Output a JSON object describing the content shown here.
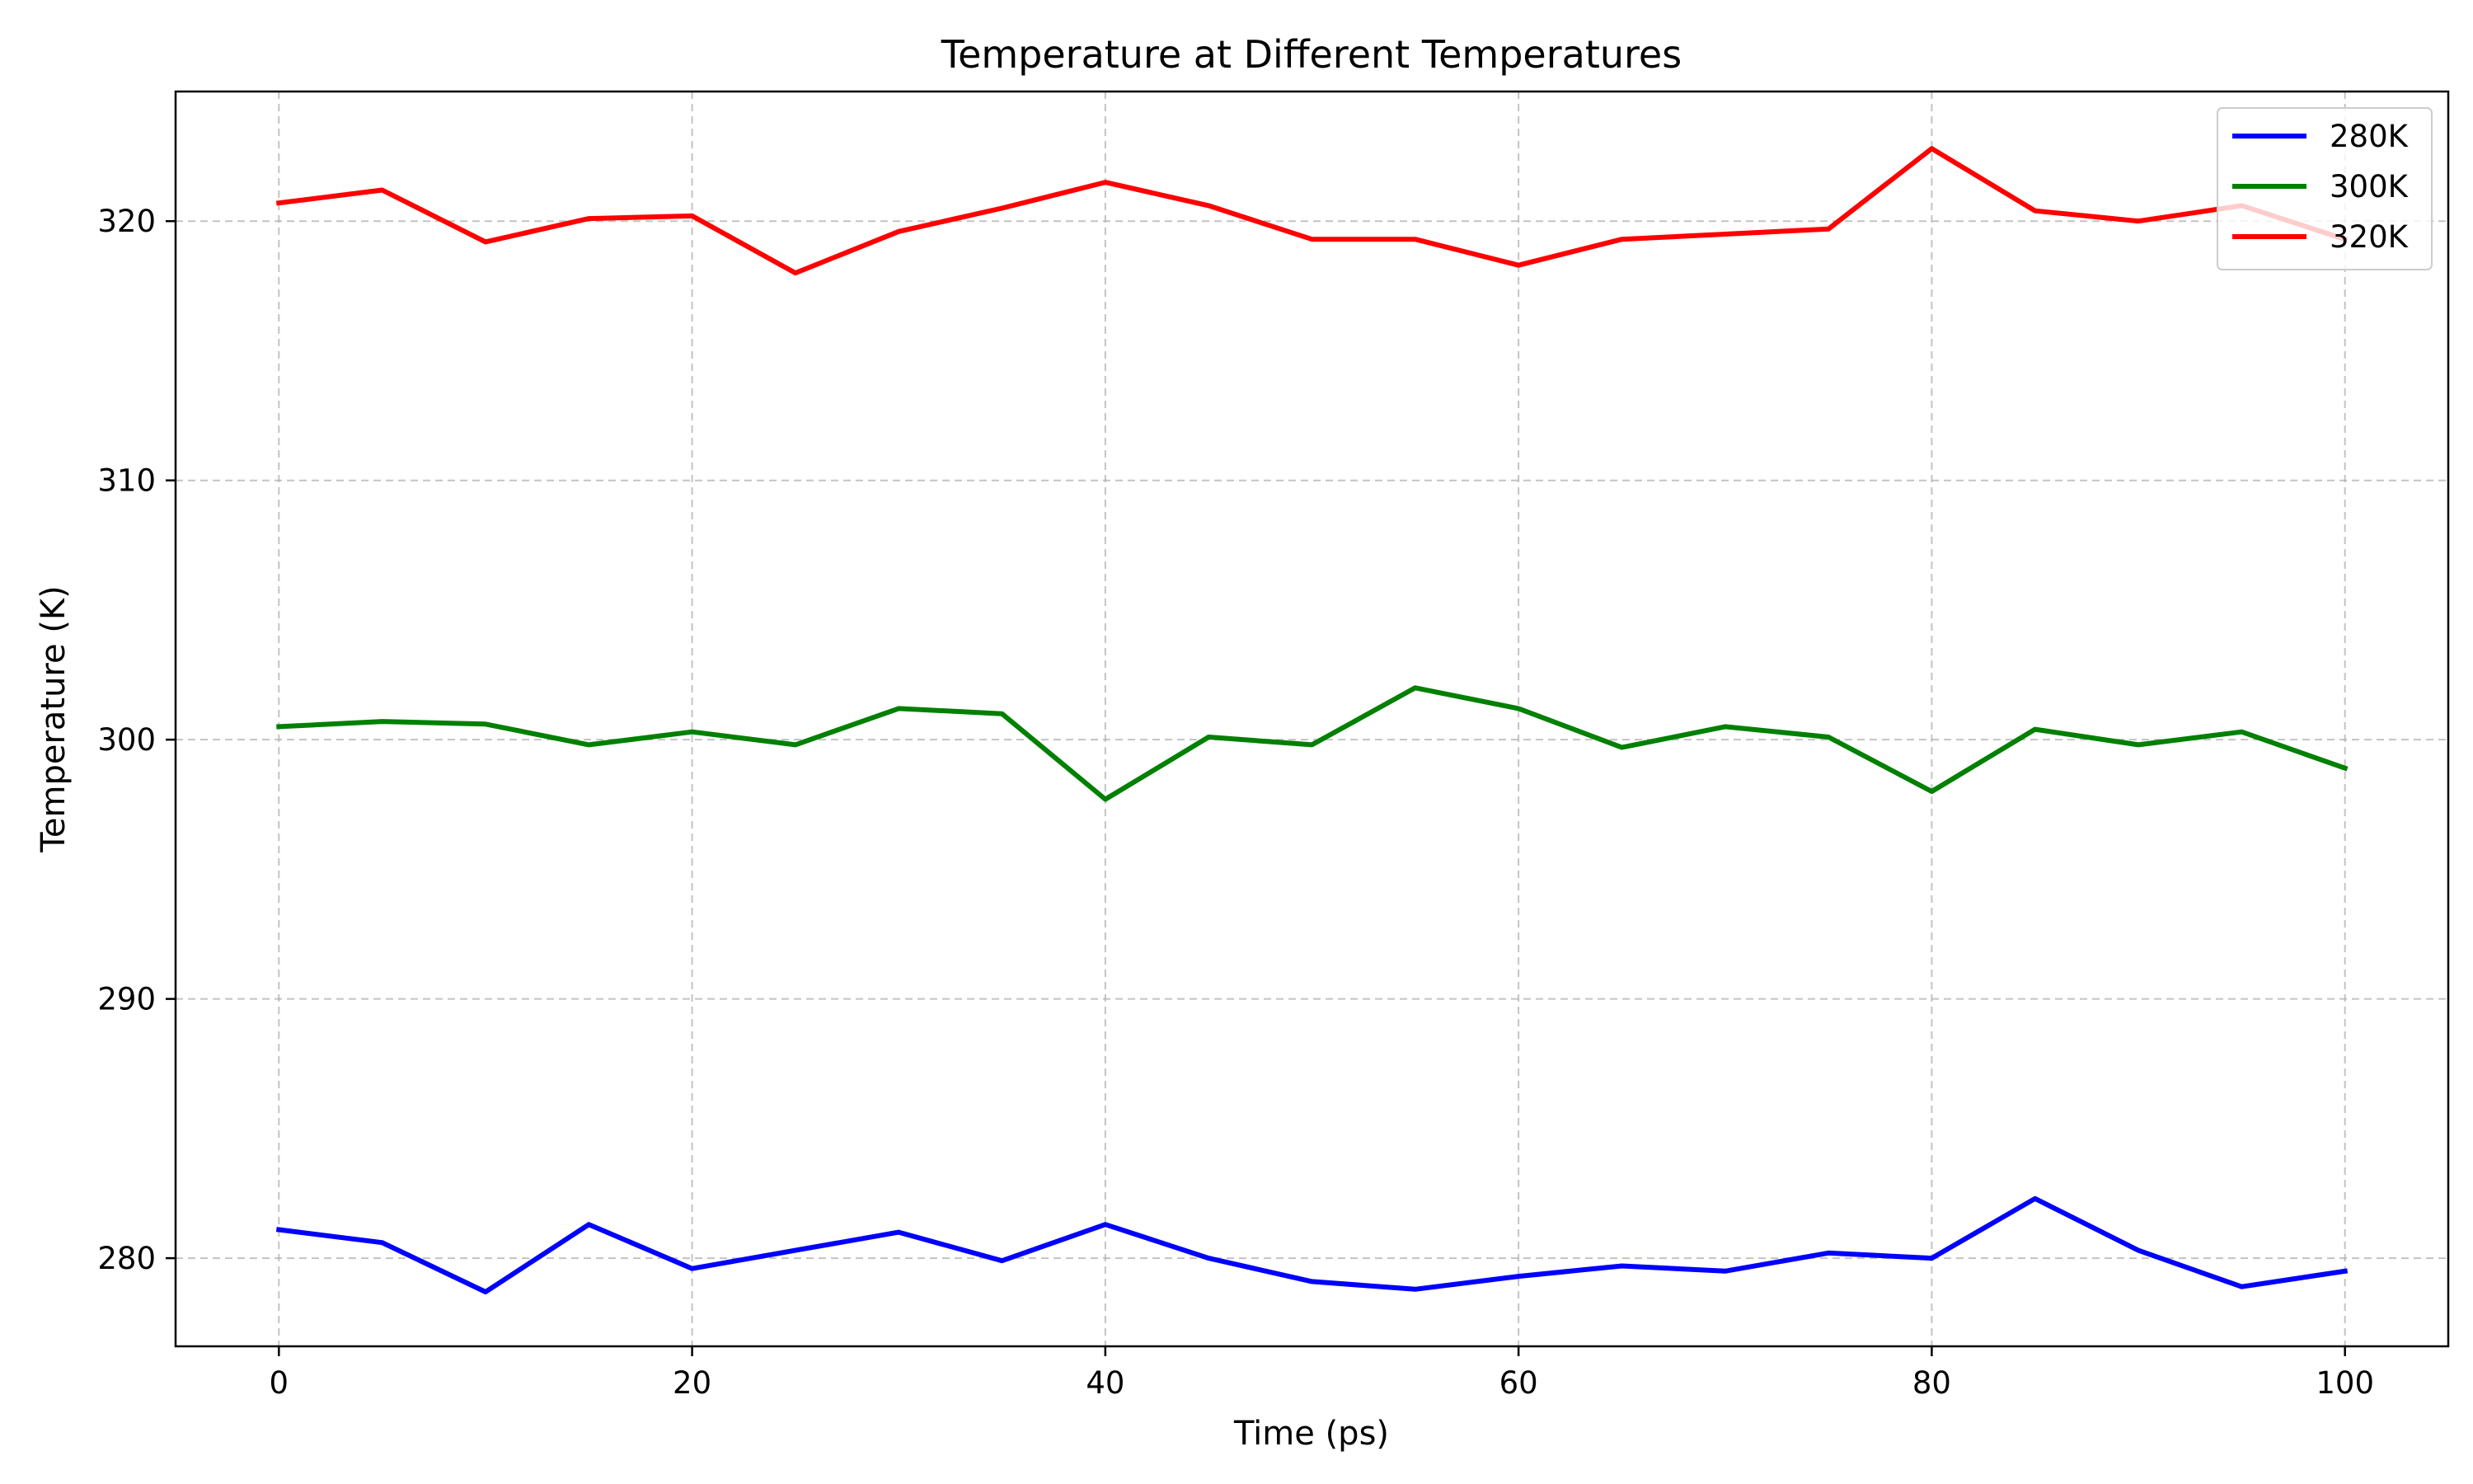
{
  "chart_data": {
    "type": "line",
    "title": "Temperature at Different Temperatures",
    "xlabel": "Time (ps)",
    "ylabel": "Temperature (K)",
    "xlim": [
      -5,
      105
    ],
    "ylim": [
      276.6,
      325.0
    ],
    "xticks": [
      0,
      20,
      40,
      60,
      80,
      100
    ],
    "yticks": [
      280,
      290,
      300,
      310,
      320
    ],
    "grid": true,
    "legend_position": "upper right",
    "x": [
      0,
      5,
      10,
      15,
      20,
      25,
      30,
      35,
      40,
      45,
      50,
      55,
      60,
      65,
      70,
      75,
      80,
      85,
      90,
      95,
      100
    ],
    "series": [
      {
        "name": "280K",
        "color": "#0000ff",
        "values": [
          281.1,
          280.6,
          278.7,
          281.3,
          279.6,
          280.3,
          281.0,
          279.9,
          281.3,
          280.0,
          279.1,
          278.8,
          279.3,
          279.7,
          279.5,
          280.2,
          280.0,
          282.3,
          280.3,
          278.9,
          279.5
        ]
      },
      {
        "name": "300K",
        "color": "#008000",
        "values": [
          300.5,
          300.7,
          300.6,
          299.8,
          300.3,
          299.8,
          301.2,
          301.0,
          297.7,
          300.1,
          299.8,
          302.0,
          301.2,
          299.7,
          300.5,
          300.1,
          298.0,
          300.4,
          299.8,
          300.3,
          298.9
        ]
      },
      {
        "name": "320K",
        "color": "#ff0000",
        "values": [
          320.7,
          321.2,
          319.2,
          320.1,
          320.2,
          318.0,
          319.6,
          320.5,
          321.5,
          320.6,
          319.3,
          319.3,
          318.3,
          319.3,
          319.5,
          319.7,
          322.8,
          320.4,
          320.0,
          320.6,
          319.3
        ]
      }
    ]
  }
}
